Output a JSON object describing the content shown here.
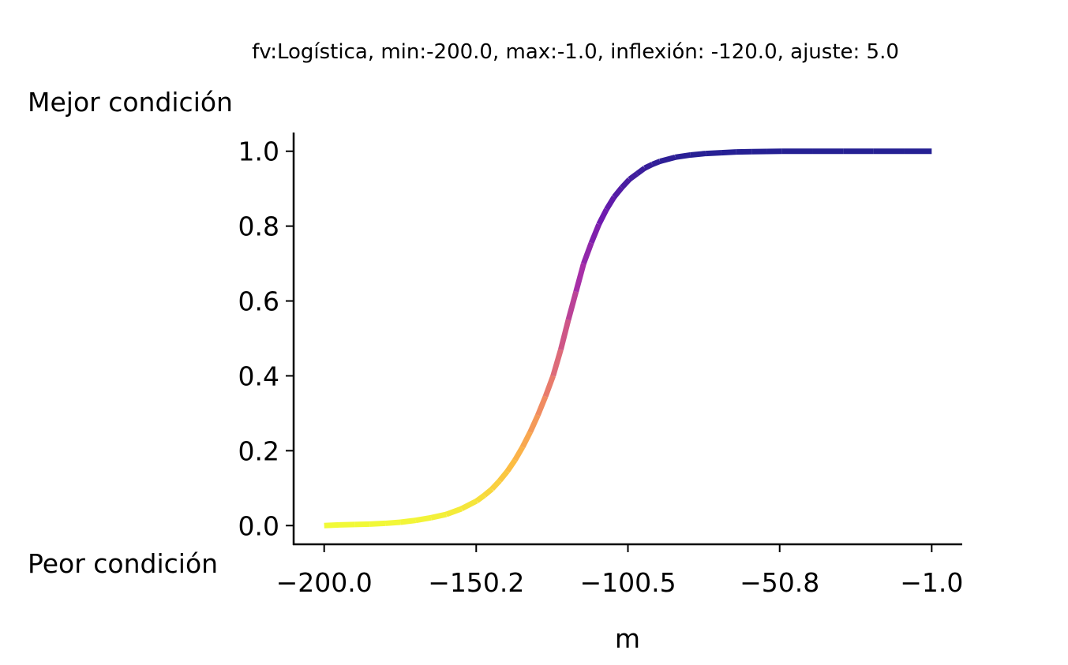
{
  "chart_data": {
    "type": "line",
    "title": "fv:Logística, min:-200.0, max:-1.0, inflexión: -120.0, ajuste: 5.0",
    "xlabel": "m",
    "ylabel": "",
    "top_label": "Mejor condición",
    "bottom_label": "Peor condición",
    "function": {
      "name": "Logística",
      "min": -200.0,
      "max": -1.0,
      "inflection": -120.0,
      "adjust": 5.0
    },
    "xlim": [
      -210.0,
      9.0
    ],
    "ylim": [
      -0.05,
      1.05
    ],
    "x_ticks": [
      -200.0,
      -150.2,
      -100.5,
      -50.8,
      -1.0
    ],
    "x_tick_labels": [
      "−200.0",
      "−150.2",
      "−100.5",
      "−50.8",
      "−1.0"
    ],
    "y_ticks": [
      0.0,
      0.2,
      0.4,
      0.6,
      0.8,
      1.0
    ],
    "y_tick_labels": [
      "0.0",
      "0.2",
      "0.4",
      "0.6",
      "0.8",
      "1.0"
    ],
    "colormap": "plasma_r",
    "colormap_stops": [
      "#f0f921",
      "#fdb32f",
      "#ed7953",
      "#cc4778",
      "#9c179e",
      "#5c01a6",
      "#0d0887"
    ],
    "grid": false,
    "legend": "none",
    "line_alpha": 0.9,
    "series": [
      {
        "x": [
          -200.0,
          -195.0,
          -190.0,
          -185.0,
          -180.0,
          -175.0,
          -170.0,
          -165.0,
          -160.0,
          -155.0,
          -150.0,
          -147.5,
          -145.0,
          -142.5,
          -140.0,
          -137.5,
          -135.0,
          -132.5,
          -130.0,
          -127.5,
          -125.0,
          -122.5,
          -120.0,
          -117.5,
          -115.0,
          -112.5,
          -110.0,
          -107.5,
          -105.0,
          -102.5,
          -100.0,
          -97.5,
          -95.0,
          -92.5,
          -90.0,
          -85.0,
          -80.0,
          -75.0,
          -70.0,
          -65.0,
          -60.0,
          -55.0,
          -50.0,
          -40.0,
          -30.0,
          -20.0,
          -10.0,
          -1.0
        ],
        "y": [
          0.0,
          0.002,
          0.003,
          0.004,
          0.006,
          0.009,
          0.014,
          0.021,
          0.03,
          0.045,
          0.066,
          0.081,
          0.098,
          0.12,
          0.145,
          0.175,
          0.21,
          0.25,
          0.295,
          0.345,
          0.4,
          0.47,
          0.55,
          0.625,
          0.7,
          0.755,
          0.805,
          0.845,
          0.878,
          0.903,
          0.925,
          0.94,
          0.955,
          0.965,
          0.973,
          0.984,
          0.99,
          0.994,
          0.996,
          0.998,
          0.999,
          0.9995,
          1.0,
          1.0,
          1.0,
          1.0,
          1.0,
          1.0
        ]
      }
    ]
  }
}
